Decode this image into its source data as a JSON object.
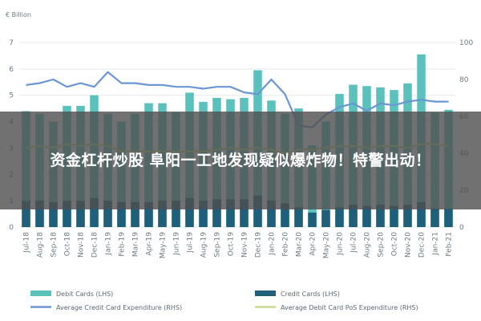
{
  "overlay": {
    "headline": "资金杠杆炒股 阜阳一工地发现疑似爆炸物！特警出动！"
  },
  "chart_data": {
    "type": "bar",
    "unit_label": "€ Billion",
    "categories": [
      "Jul-18",
      "Aug-18",
      "Sep-18",
      "Oct-18",
      "Nov-18",
      "Dec-18",
      "Jan-19",
      "Feb-19",
      "Mar-19",
      "Apr-19",
      "May-19",
      "Jun-19",
      "Jul-19",
      "Aug-19",
      "Sep-19",
      "Oct-19",
      "Nov-19",
      "Dec-19",
      "Jan-20",
      "Feb-20",
      "Mar-20",
      "Apr-20",
      "May-20",
      "Jun-20",
      "Jul-20",
      "Aug-20",
      "Sep-20",
      "Oct-20",
      "Nov-20",
      "Dec-20",
      "Jan-21",
      "Feb-21"
    ],
    "y_left": {
      "min": 0,
      "max": 7,
      "ticks": [
        0,
        1,
        2,
        3,
        4,
        5,
        6,
        7
      ]
    },
    "y_right": {
      "min": 0,
      "max": 100,
      "ticks": [
        0,
        20,
        40,
        60,
        80,
        100
      ]
    },
    "series": [
      {
        "name": "Debit Cards (LHS)",
        "kind": "bar",
        "axis": "left",
        "color": "#5bc1bd",
        "values": [
          4.4,
          4.3,
          4.0,
          4.6,
          4.6,
          5.0,
          4.3,
          4.0,
          4.3,
          4.7,
          4.7,
          4.35,
          5.1,
          4.75,
          4.9,
          4.85,
          4.9,
          5.95,
          4.8,
          4.3,
          4.5,
          3.1,
          4.0,
          5.05,
          5.4,
          5.35,
          5.3,
          5.2,
          5.45,
          6.55,
          4.35,
          4.45
        ]
      },
      {
        "name": "Credit Cards (LHS)",
        "kind": "bar",
        "axis": "left",
        "color": "#1f5f7a",
        "values": [
          1.0,
          1.0,
          0.95,
          1.0,
          1.0,
          1.1,
          1.0,
          0.95,
          0.95,
          0.95,
          1.0,
          1.0,
          1.1,
          1.0,
          1.05,
          1.05,
          1.05,
          1.2,
          1.0,
          0.9,
          0.75,
          0.55,
          0.65,
          0.75,
          0.85,
          0.8,
          0.85,
          0.8,
          0.85,
          0.95,
          0.7,
          0.7
        ]
      },
      {
        "name": "Average Credit Card Expenditure (RHS)",
        "kind": "line",
        "axis": "right",
        "color": "#6a96d3",
        "values": [
          77,
          78,
          80,
          76,
          78,
          76,
          84,
          78,
          78,
          77,
          77,
          76,
          76,
          75,
          76,
          76,
          73,
          72,
          80,
          72,
          55,
          54,
          61,
          65,
          67,
          63,
          67,
          66,
          68,
          69,
          68,
          68
        ]
      },
      {
        "name": "Average Debit Card PoS Expenditure (RHS)",
        "kind": "line",
        "axis": "right",
        "color": "#c9dc8d",
        "values": [
          43,
          44,
          43,
          45,
          44,
          45,
          44,
          41,
          41,
          41,
          41,
          41,
          41,
          41,
          42,
          43,
          42,
          43,
          42,
          40,
          42,
          42,
          43,
          44,
          44,
          43,
          44,
          44,
          43,
          45,
          45,
          44
        ]
      }
    ]
  }
}
